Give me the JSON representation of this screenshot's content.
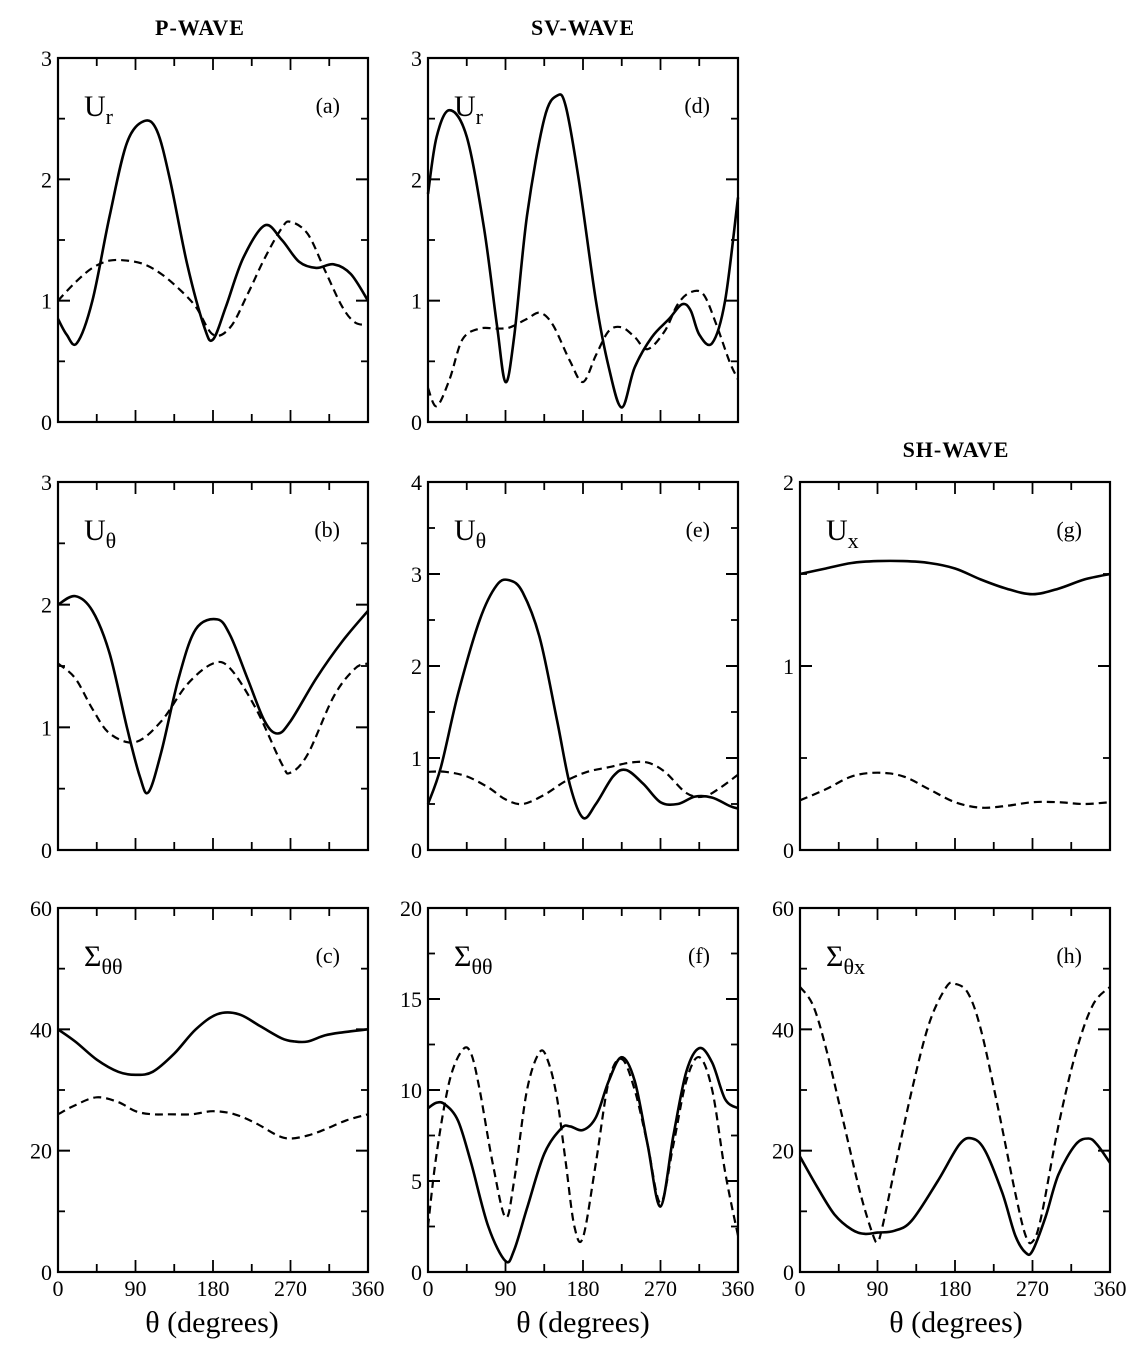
{
  "column_titles": [
    "P-WAVE",
    "SV-WAVE",
    "SH-WAVE"
  ],
  "xlabel": "θ (degrees)",
  "chart_data": [
    {
      "id": "a",
      "type": "line",
      "column": "P-WAVE",
      "quantity": "U",
      "quantity_sub": "r",
      "panel_label": "(a)",
      "xlim": [
        0,
        360
      ],
      "ylim": [
        0,
        3
      ],
      "xticks": [],
      "yticks": [
        0,
        1,
        2,
        3
      ],
      "series": [
        {
          "style": "solid",
          "x": [
            0,
            10,
            22,
            40,
            60,
            80,
            100,
            115,
            130,
            150,
            170,
            180,
            195,
            215,
            240,
            260,
            280,
            300,
            320,
            340,
            360
          ],
          "y": [
            0.85,
            0.72,
            0.65,
            1.0,
            1.7,
            2.3,
            2.48,
            2.4,
            2.0,
            1.3,
            0.78,
            0.68,
            0.95,
            1.35,
            1.62,
            1.5,
            1.32,
            1.27,
            1.3,
            1.22,
            1.0
          ]
        },
        {
          "style": "dashed",
          "x": [
            0,
            20,
            40,
            60,
            80,
            100,
            120,
            140,
            160,
            180,
            200,
            220,
            240,
            260,
            270,
            290,
            310,
            330,
            345,
            360
          ],
          "y": [
            1.0,
            1.15,
            1.27,
            1.33,
            1.33,
            1.3,
            1.22,
            1.1,
            0.95,
            0.72,
            0.78,
            1.05,
            1.35,
            1.6,
            1.65,
            1.55,
            1.25,
            0.95,
            0.82,
            0.8
          ]
        }
      ]
    },
    {
      "id": "b",
      "type": "line",
      "column": "P-WAVE",
      "quantity": "U",
      "quantity_sub": "θ",
      "panel_label": "(b)",
      "xlim": [
        0,
        360
      ],
      "ylim": [
        0,
        3
      ],
      "xticks": [],
      "yticks": [
        0,
        1,
        2,
        3
      ],
      "series": [
        {
          "style": "solid",
          "x": [
            0,
            20,
            40,
            60,
            80,
            95,
            105,
            120,
            140,
            160,
            185,
            200,
            220,
            240,
            255,
            270,
            300,
            330,
            360
          ],
          "y": [
            2.0,
            2.07,
            1.95,
            1.6,
            1.0,
            0.6,
            0.47,
            0.8,
            1.4,
            1.8,
            1.88,
            1.75,
            1.4,
            1.05,
            0.95,
            1.05,
            1.4,
            1.7,
            1.95
          ]
        },
        {
          "style": "dashed",
          "x": [
            0,
            20,
            40,
            60,
            90,
            120,
            150,
            180,
            200,
            230,
            260,
            270,
            290,
            320,
            345,
            360
          ],
          "y": [
            1.52,
            1.4,
            1.15,
            0.95,
            0.88,
            1.05,
            1.35,
            1.52,
            1.48,
            1.15,
            0.7,
            0.63,
            0.78,
            1.25,
            1.48,
            1.52
          ]
        }
      ]
    },
    {
      "id": "c",
      "type": "line",
      "column": "P-WAVE",
      "quantity": "Σ",
      "quantity_sub": "θθ",
      "panel_label": "(c)",
      "xlim": [
        0,
        360
      ],
      "ylim": [
        0,
        60
      ],
      "xticks": [
        0,
        90,
        180,
        270,
        360
      ],
      "yticks": [
        0,
        20,
        40,
        60
      ],
      "series": [
        {
          "style": "solid",
          "x": [
            0,
            20,
            45,
            70,
            90,
            110,
            135,
            160,
            185,
            210,
            235,
            260,
            275,
            290,
            310,
            330,
            360
          ],
          "y": [
            40,
            38,
            35,
            33,
            32.5,
            33,
            36,
            40,
            42.5,
            42.5,
            40.5,
            38.5,
            38,
            38,
            39,
            39.5,
            40
          ]
        },
        {
          "style": "dashed",
          "x": [
            0,
            20,
            45,
            70,
            90,
            110,
            130,
            155,
            180,
            205,
            230,
            255,
            270,
            290,
            310,
            335,
            360
          ],
          "y": [
            26,
            27.5,
            28.8,
            28,
            26.5,
            26,
            26,
            26,
            26.5,
            26,
            24.5,
            22.5,
            22,
            22.5,
            23.5,
            25,
            26
          ]
        }
      ]
    },
    {
      "id": "d",
      "type": "line",
      "column": "SV-WAVE",
      "quantity": "U",
      "quantity_sub": "r",
      "panel_label": "(d)",
      "xlim": [
        0,
        360
      ],
      "ylim": [
        0,
        3
      ],
      "xticks": [],
      "yticks": [
        0,
        1,
        2,
        3
      ],
      "series": [
        {
          "style": "solid",
          "x": [
            0,
            10,
            25,
            45,
            65,
            80,
            90,
            100,
            115,
            135,
            150,
            160,
            175,
            195,
            210,
            225,
            240,
            260,
            280,
            295,
            305,
            315,
            330,
            345,
            360
          ],
          "y": [
            1.88,
            2.35,
            2.57,
            2.35,
            1.6,
            0.8,
            0.33,
            0.7,
            1.7,
            2.5,
            2.69,
            2.6,
            2.0,
            1.0,
            0.45,
            0.12,
            0.45,
            0.7,
            0.85,
            0.97,
            0.92,
            0.72,
            0.65,
            1.0,
            1.85
          ]
        },
        {
          "style": "dashed",
          "x": [
            0,
            10,
            25,
            40,
            60,
            80,
            95,
            115,
            130,
            145,
            165,
            180,
            195,
            210,
            225,
            240,
            255,
            275,
            290,
            305,
            320,
            335,
            350,
            360
          ],
          "y": [
            0.28,
            0.13,
            0.35,
            0.68,
            0.77,
            0.77,
            0.78,
            0.85,
            0.9,
            0.8,
            0.5,
            0.33,
            0.55,
            0.75,
            0.78,
            0.7,
            0.6,
            0.75,
            0.97,
            1.07,
            1.05,
            0.8,
            0.5,
            0.35
          ]
        }
      ]
    },
    {
      "id": "e",
      "type": "line",
      "column": "SV-WAVE",
      "quantity": "U",
      "quantity_sub": "θ",
      "panel_label": "(e)",
      "xlim": [
        0,
        360
      ],
      "ylim": [
        0,
        4
      ],
      "xticks": [],
      "yticks": [
        0,
        1,
        2,
        3,
        4
      ],
      "series": [
        {
          "style": "solid",
          "x": [
            0,
            15,
            35,
            60,
            80,
            95,
            110,
            130,
            150,
            165,
            180,
            195,
            215,
            230,
            250,
            270,
            290,
            310,
            330,
            350,
            360
          ],
          "y": [
            0.5,
            0.9,
            1.7,
            2.5,
            2.88,
            2.93,
            2.8,
            2.3,
            1.4,
            0.7,
            0.35,
            0.5,
            0.8,
            0.87,
            0.72,
            0.52,
            0.5,
            0.58,
            0.57,
            0.48,
            0.45
          ]
        },
        {
          "style": "dashed",
          "x": [
            0,
            20,
            45,
            70,
            90,
            110,
            135,
            160,
            185,
            210,
            235,
            255,
            275,
            300,
            320,
            340,
            360
          ],
          "y": [
            0.85,
            0.85,
            0.8,
            0.68,
            0.55,
            0.5,
            0.6,
            0.75,
            0.85,
            0.9,
            0.95,
            0.95,
            0.85,
            0.62,
            0.58,
            0.68,
            0.82
          ]
        }
      ]
    },
    {
      "id": "f",
      "type": "line",
      "column": "SV-WAVE",
      "quantity": "Σ",
      "quantity_sub": "θθ",
      "panel_label": "(f)",
      "xlim": [
        0,
        360
      ],
      "ylim": [
        0,
        20
      ],
      "xticks": [
        0,
        90,
        180,
        270,
        360
      ],
      "yticks": [
        0,
        5,
        10,
        15,
        20
      ],
      "series": [
        {
          "style": "solid",
          "x": [
            0,
            10,
            20,
            35,
            50,
            70,
            90,
            100,
            115,
            135,
            155,
            165,
            180,
            195,
            210,
            225,
            240,
            255,
            270,
            285,
            300,
            315,
            330,
            345,
            360
          ],
          "y": [
            9.0,
            9.3,
            9.2,
            8.3,
            6.0,
            2.5,
            0.6,
            1.2,
            3.5,
            6.5,
            7.9,
            8.0,
            7.8,
            8.5,
            10.5,
            11.8,
            10.5,
            7.0,
            3.6,
            7.5,
            11.0,
            12.3,
            11.5,
            9.5,
            9.0
          ]
        },
        {
          "style": "dashed",
          "x": [
            0,
            10,
            25,
            40,
            50,
            60,
            75,
            90,
            100,
            115,
            130,
            140,
            150,
            160,
            170,
            180,
            195,
            210,
            225,
            240,
            255,
            270,
            285,
            300,
            315,
            330,
            345,
            360
          ],
          "y": [
            2.5,
            6.5,
            10.5,
            12.2,
            12.0,
            10.0,
            6.0,
            3.0,
            5.0,
            10.0,
            12.1,
            11.5,
            9.5,
            6.0,
            2.5,
            1.9,
            6.0,
            10.5,
            11.7,
            10.0,
            7.0,
            3.8,
            7.0,
            10.5,
            11.8,
            10.0,
            5.5,
            2.0
          ]
        }
      ]
    },
    {
      "id": "g",
      "type": "line",
      "column": "SH-WAVE",
      "quantity": "U",
      "quantity_sub": "x",
      "panel_label": "(g)",
      "xlim": [
        0,
        360
      ],
      "ylim": [
        0,
        2
      ],
      "xticks": [],
      "yticks": [
        0,
        1,
        2
      ],
      "series": [
        {
          "style": "solid",
          "x": [
            0,
            30,
            60,
            90,
            120,
            150,
            180,
            210,
            240,
            270,
            300,
            330,
            360
          ],
          "y": [
            1.5,
            1.53,
            1.56,
            1.57,
            1.57,
            1.56,
            1.53,
            1.47,
            1.42,
            1.39,
            1.42,
            1.47,
            1.5
          ]
        },
        {
          "style": "dashed",
          "x": [
            0,
            30,
            60,
            90,
            120,
            150,
            180,
            210,
            240,
            270,
            300,
            330,
            360
          ],
          "y": [
            0.27,
            0.33,
            0.4,
            0.42,
            0.4,
            0.33,
            0.26,
            0.23,
            0.24,
            0.26,
            0.26,
            0.25,
            0.26
          ]
        }
      ]
    },
    {
      "id": "h",
      "type": "line",
      "column": "SH-WAVE",
      "quantity": "Σ",
      "quantity_sub": "θx",
      "panel_label": "(h)",
      "xlim": [
        0,
        360
      ],
      "ylim": [
        0,
        60
      ],
      "xticks": [
        0,
        90,
        180,
        270,
        360
      ],
      "yticks": [
        0,
        20,
        40,
        60
      ],
      "series": [
        {
          "style": "solid",
          "x": [
            0,
            20,
            40,
            60,
            75,
            90,
            110,
            130,
            160,
            185,
            200,
            215,
            235,
            250,
            262,
            270,
            285,
            300,
            320,
            335,
            345,
            360
          ],
          "y": [
            19,
            14,
            9.5,
            7,
            6.3,
            6.5,
            6.8,
            8.5,
            15,
            21,
            22,
            20,
            13,
            6,
            3.2,
            3.5,
            9,
            16,
            21,
            22,
            21,
            18
          ]
        },
        {
          "style": "dashed",
          "x": [
            0,
            15,
            30,
            50,
            70,
            85,
            90,
            95,
            110,
            130,
            150,
            170,
            180,
            195,
            210,
            230,
            250,
            262,
            270,
            280,
            300,
            320,
            340,
            360
          ],
          "y": [
            47,
            44,
            37,
            25,
            13,
            6,
            5,
            7,
            17,
            30,
            41,
            47,
            47.5,
            46,
            40,
            27,
            13,
            6,
            5,
            9,
            24,
            36,
            44,
            47
          ]
        }
      ]
    }
  ]
}
